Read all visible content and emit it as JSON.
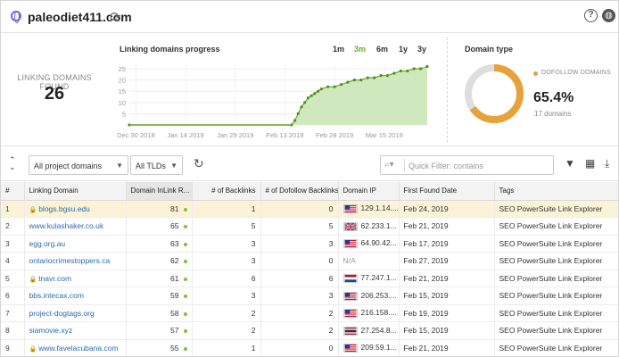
{
  "header": {
    "domain": "paleodiet411.com"
  },
  "summary": {
    "linking_domains_label": "LINKING DOMAINS FOUND",
    "linking_domains_value": "26",
    "progress_title": "Linking domains progress",
    "ranges": [
      "1m",
      "3m",
      "6m",
      "1y",
      "3y"
    ],
    "active_range": "3m",
    "domain_type_title": "Domain type",
    "dofollow_label": "DOFOLLOW DOMAINS",
    "dofollow_percent": "65.4%",
    "dofollow_count": "17 domains",
    "dofollow_fraction": 0.654,
    "accent_color": "#e8a23a",
    "chart_color": "#6aab2e"
  },
  "chart_data": {
    "type": "area",
    "title": "Linking domains progress",
    "y_ticks": [
      "5",
      "10",
      "15",
      "20",
      "25"
    ],
    "ylim": [
      0,
      27
    ],
    "x_ticks": [
      "Dec 30 2018",
      "Jan 14 2019",
      "Jan 29 2019",
      "Feb 13 2019",
      "Feb 28 2019",
      "Mar 15 2019"
    ],
    "x_tick_labels": [
      "Dec 30 2018",
      "Jan 14 2019",
      "Jan 29 2019",
      "Feb 13 2019",
      "Feb 28 2019",
      "Mar 15 2019"
    ],
    "xlim": [
      "Dec 28 2018",
      "Mar 28 2019"
    ],
    "series": [
      {
        "x": [
          "Dec 28 2018",
          "Feb 15 2019",
          "Feb 16 2019",
          "Feb 17 2019",
          "Feb 18 2019",
          "Feb 19 2019",
          "Feb 20 2019",
          "Feb 21 2019",
          "Feb 22 2019",
          "Feb 23 2019",
          "Feb 24 2019",
          "Feb 26 2019",
          "Feb 28 2019",
          "Mar 2 2019",
          "Mar 4 2019",
          "Mar 6 2019",
          "Mar 8 2019",
          "Mar 10 2019",
          "Mar 12 2019",
          "Mar 14 2019",
          "Mar 16 2019",
          "Mar 18 2019",
          "Mar 20 2019",
          "Mar 22 2019",
          "Mar 24 2019",
          "Mar 26 2019",
          "Mar 28 2019"
        ],
        "values": [
          0,
          0,
          2,
          5,
          8,
          10,
          12,
          13,
          14,
          15,
          16,
          17,
          17,
          18,
          19,
          20,
          20,
          21,
          21,
          22,
          22,
          23,
          24,
          24,
          25,
          25,
          26
        ]
      }
    ]
  },
  "toolbar": {
    "project_domains": "All project domains",
    "tlds": "All TLDs",
    "filter_placeholder": "Quick Filter: contains"
  },
  "table": {
    "columns": [
      "#",
      "Linking Domain",
      "Domain InLink R...",
      "# of Backlinks",
      "# of Dofollow Backlinks",
      "Domain IP",
      "First Found Date",
      "Tags"
    ],
    "rows": [
      {
        "idx": "1",
        "domain": "blogs.bgsu.edu",
        "secure": true,
        "rank": "81",
        "backlinks": "1",
        "dofollow": "0",
        "country": "us",
        "ip": "129.1.14....",
        "date": "Feb 24, 2019",
        "tags": "SEO PowerSuite Link Explorer"
      },
      {
        "idx": "2",
        "domain": "www.kulashaker.co.uk",
        "secure": false,
        "rank": "65",
        "backlinks": "5",
        "dofollow": "5",
        "country": "uk",
        "ip": "62.233.1...",
        "date": "Feb 21, 2019",
        "tags": "SEO PowerSuite Link Explorer"
      },
      {
        "idx": "3",
        "domain": "egg.org.au",
        "secure": false,
        "rank": "63",
        "backlinks": "3",
        "dofollow": "3",
        "country": "us",
        "ip": "64.90.42...",
        "date": "Feb 17, 2019",
        "tags": "SEO PowerSuite Link Explorer"
      },
      {
        "idx": "4",
        "domain": "ontariocrimestoppers.ca",
        "secure": false,
        "rank": "62",
        "backlinks": "3",
        "dofollow": "0",
        "country": "",
        "ip": "N/A",
        "date": "Feb 27, 2019",
        "tags": "SEO PowerSuite Link Explorer"
      },
      {
        "idx": "5",
        "domain": "tnavr.com",
        "secure": true,
        "rank": "61",
        "backlinks": "6",
        "dofollow": "6",
        "country": "nl",
        "ip": "77.247.1...",
        "date": "Feb 21, 2019",
        "tags": "SEO PowerSuite Link Explorer"
      },
      {
        "idx": "6",
        "domain": "bbs.intecax.com",
        "secure": false,
        "rank": "59",
        "backlinks": "3",
        "dofollow": "3",
        "country": "us",
        "ip": "206.253....",
        "date": "Feb 15, 2019",
        "tags": "SEO PowerSuite Link Explorer"
      },
      {
        "idx": "7",
        "domain": "project-dogtags.org",
        "secure": false,
        "rank": "58",
        "backlinks": "2",
        "dofollow": "2",
        "country": "us",
        "ip": "216.158....",
        "date": "Feb 19, 2019",
        "tags": "SEO PowerSuite Link Explorer"
      },
      {
        "idx": "8",
        "domain": "siamovie.xyz",
        "secure": false,
        "rank": "57",
        "backlinks": "2",
        "dofollow": "2",
        "country": "th",
        "ip": "27.254.8...",
        "date": "Feb 15, 2019",
        "tags": "SEO PowerSuite Link Explorer"
      },
      {
        "idx": "9",
        "domain": "www.favelacubana.com",
        "secure": true,
        "rank": "55",
        "backlinks": "1",
        "dofollow": "0",
        "country": "us",
        "ip": "209.59.1...",
        "date": "Feb 21, 2019",
        "tags": "SEO PowerSuite Link Explorer"
      }
    ]
  }
}
